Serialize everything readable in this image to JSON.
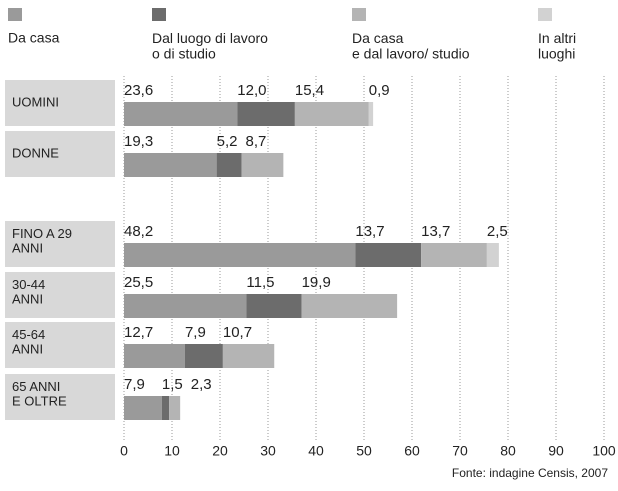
{
  "chart_data": {
    "type": "bar",
    "orientation": "horizontal",
    "stacked": true,
    "source": "Fonte: indagine Censis, 2007",
    "categories": [
      "UOMINI",
      "DONNE",
      "FINO A 29\nANNI",
      "30-44\nANNI",
      "45-64\nANNI",
      "65 ANNI\nE OLTRE"
    ],
    "series": [
      {
        "name": "Da casa",
        "color": "#9a9a9a",
        "values": [
          23.6,
          19.3,
          48.2,
          25.5,
          12.7,
          7.9
        ],
        "value_labels": [
          "23,6",
          "19,3",
          "48,2",
          "25,5",
          "12,7",
          "7,9"
        ]
      },
      {
        "name": "Dal luogo di lavoro\no di studio",
        "color": "#6c6c6c",
        "values": [
          12.0,
          5.2,
          13.7,
          11.5,
          7.9,
          1.5
        ],
        "value_labels": [
          "12,0",
          "5,2",
          "13,7",
          "11,5",
          "7,9",
          "1,5"
        ]
      },
      {
        "name": "Da casa\ne dal lavoro/ studio",
        "color": "#b4b4b4",
        "values": [
          15.4,
          8.7,
          13.7,
          19.9,
          10.7,
          2.3
        ],
        "value_labels": [
          "15,4",
          "8,7",
          "13,7",
          "19,9",
          "10,7",
          "2,3"
        ]
      },
      {
        "name": "In altri\nluoghi",
        "color": "#d2d2d2",
        "values": [
          0.9,
          null,
          2.5,
          null,
          null,
          null
        ],
        "value_labels": [
          "0,9",
          null,
          "2,5",
          null,
          null,
          null
        ]
      }
    ],
    "xlim": [
      0,
      100
    ],
    "xticks": [
      0,
      10,
      20,
      30,
      40,
      50,
      60,
      70,
      80,
      90,
      100
    ],
    "grid": true
  }
}
